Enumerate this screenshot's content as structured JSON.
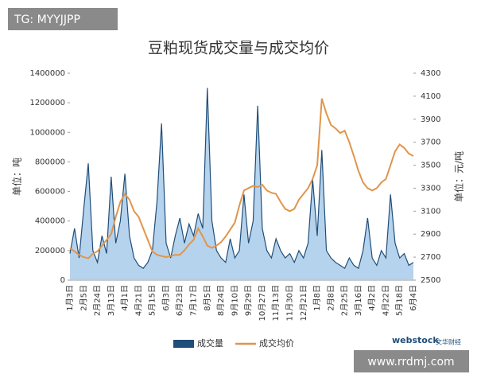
{
  "chart_data": {
    "type": "bar_line",
    "title": "豆粕现货成交量与成交均价",
    "y_label": "单位：吨",
    "y2_label": "单位：元/吨",
    "annotations": [
      "TG: MYYJJPP",
      "www.rrdmj.com",
      "webstock",
      "文华财经"
    ],
    "categories": [
      "1月3日",
      null,
      null,
      "2月5日",
      null,
      null,
      "2月24日",
      null,
      null,
      "3月13日",
      null,
      null,
      "4月1日",
      null,
      null,
      "4月21日",
      null,
      null,
      "5月15日",
      null,
      null,
      "6月3日",
      null,
      null,
      "6月23日",
      null,
      null,
      "7月17日",
      null,
      null,
      "8月5日",
      null,
      null,
      "8月24日",
      null,
      null,
      "9月10日",
      null,
      null,
      "9月29日",
      null,
      null,
      "10月27日",
      null,
      null,
      "11月13日",
      null,
      null,
      "11月30日",
      null,
      null,
      "12月21日",
      null,
      null,
      "1月8日",
      null,
      null,
      "2月8日",
      null,
      null,
      "2月25日",
      null,
      null,
      "3月16日",
      null,
      null,
      "4月2日",
      null,
      null,
      "4月22日",
      null,
      null,
      "5月18日",
      null,
      null,
      "6月4日"
    ],
    "series": [
      {
        "name": "成交量",
        "type": "area",
        "color": "#1f4e79",
        "fill": "#a9cbea",
        "values": [
          180000,
          350000,
          150000,
          480000,
          790000,
          200000,
          120000,
          300000,
          180000,
          700000,
          250000,
          400000,
          720000,
          300000,
          150000,
          100000,
          80000,
          120000,
          200000,
          530000,
          1060000,
          250000,
          150000,
          300000,
          420000,
          250000,
          380000,
          300000,
          450000,
          350000,
          1300000,
          400000,
          200000,
          150000,
          120000,
          280000,
          150000,
          200000,
          580000,
          250000,
          400000,
          1180000,
          350000,
          200000,
          150000,
          280000,
          200000,
          150000,
          180000,
          120000,
          200000,
          150000,
          250000,
          680000,
          300000,
          880000,
          200000,
          150000,
          120000,
          100000,
          80000,
          150000,
          100000,
          80000,
          200000,
          420000,
          150000,
          100000,
          200000,
          150000,
          580000,
          250000,
          150000,
          180000,
          100000,
          120000
        ]
      },
      {
        "name": "成交均价",
        "type": "line",
        "axis": "y2",
        "color": "#e0954a",
        "values": [
          2780,
          2750,
          2720,
          2700,
          2690,
          2730,
          2750,
          2800,
          2850,
          2900,
          3050,
          3180,
          3250,
          3200,
          3100,
          3050,
          2950,
          2850,
          2750,
          2720,
          2710,
          2700,
          2710,
          2720,
          2720,
          2760,
          2810,
          2850,
          2950,
          2880,
          2800,
          2780,
          2800,
          2830,
          2880,
          2940,
          3000,
          3150,
          3280,
          3300,
          3320,
          3310,
          3330,
          3280,
          3260,
          3250,
          3180,
          3120,
          3100,
          3120,
          3200,
          3250,
          3300,
          3380,
          3500,
          4080,
          3950,
          3850,
          3820,
          3780,
          3800,
          3700,
          3580,
          3450,
          3350,
          3300,
          3280,
          3300,
          3350,
          3380,
          3500,
          3620,
          3680,
          3650,
          3600,
          3580
        ]
      }
    ],
    "ylim": [
      0,
      1400000
    ],
    "yticks": [
      0,
      200000,
      400000,
      600000,
      800000,
      1000000,
      1200000,
      1400000
    ],
    "y2lim": [
      2500,
      4300
    ],
    "y2ticks": [
      2500,
      2700,
      2900,
      3100,
      3300,
      3500,
      3700,
      3900,
      4100,
      4300
    ],
    "grid": false
  }
}
